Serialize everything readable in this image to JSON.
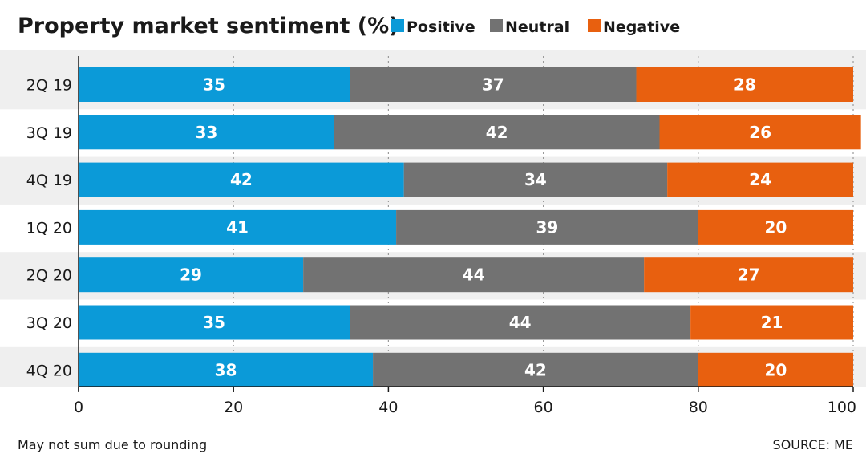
{
  "chart_data": {
    "type": "bar",
    "orientation": "horizontal",
    "stacked": true,
    "title": "Property market sentiment (%)",
    "categories": [
      "2Q 19",
      "3Q 19",
      "4Q 19",
      "1Q 20",
      "2Q 20",
      "3Q 20",
      "4Q 20"
    ],
    "series": [
      {
        "name": "Positive",
        "color": "#0b9ad8",
        "values": [
          35,
          33,
          42,
          41,
          29,
          35,
          38
        ]
      },
      {
        "name": "Neutral",
        "color": "#727272",
        "values": [
          37,
          42,
          34,
          39,
          44,
          44,
          42
        ]
      },
      {
        "name": "Negative",
        "color": "#e8600f",
        "values": [
          28,
          26,
          24,
          20,
          27,
          21,
          20
        ]
      }
    ],
    "xlim": [
      0,
      100
    ],
    "xticks": [
      "0",
      "20",
      "40",
      "60",
      "80",
      "100"
    ],
    "grid": "vertical dotted",
    "legend": "top",
    "footnote": "May not sum due to rounding",
    "source": "SOURCE: ME"
  }
}
